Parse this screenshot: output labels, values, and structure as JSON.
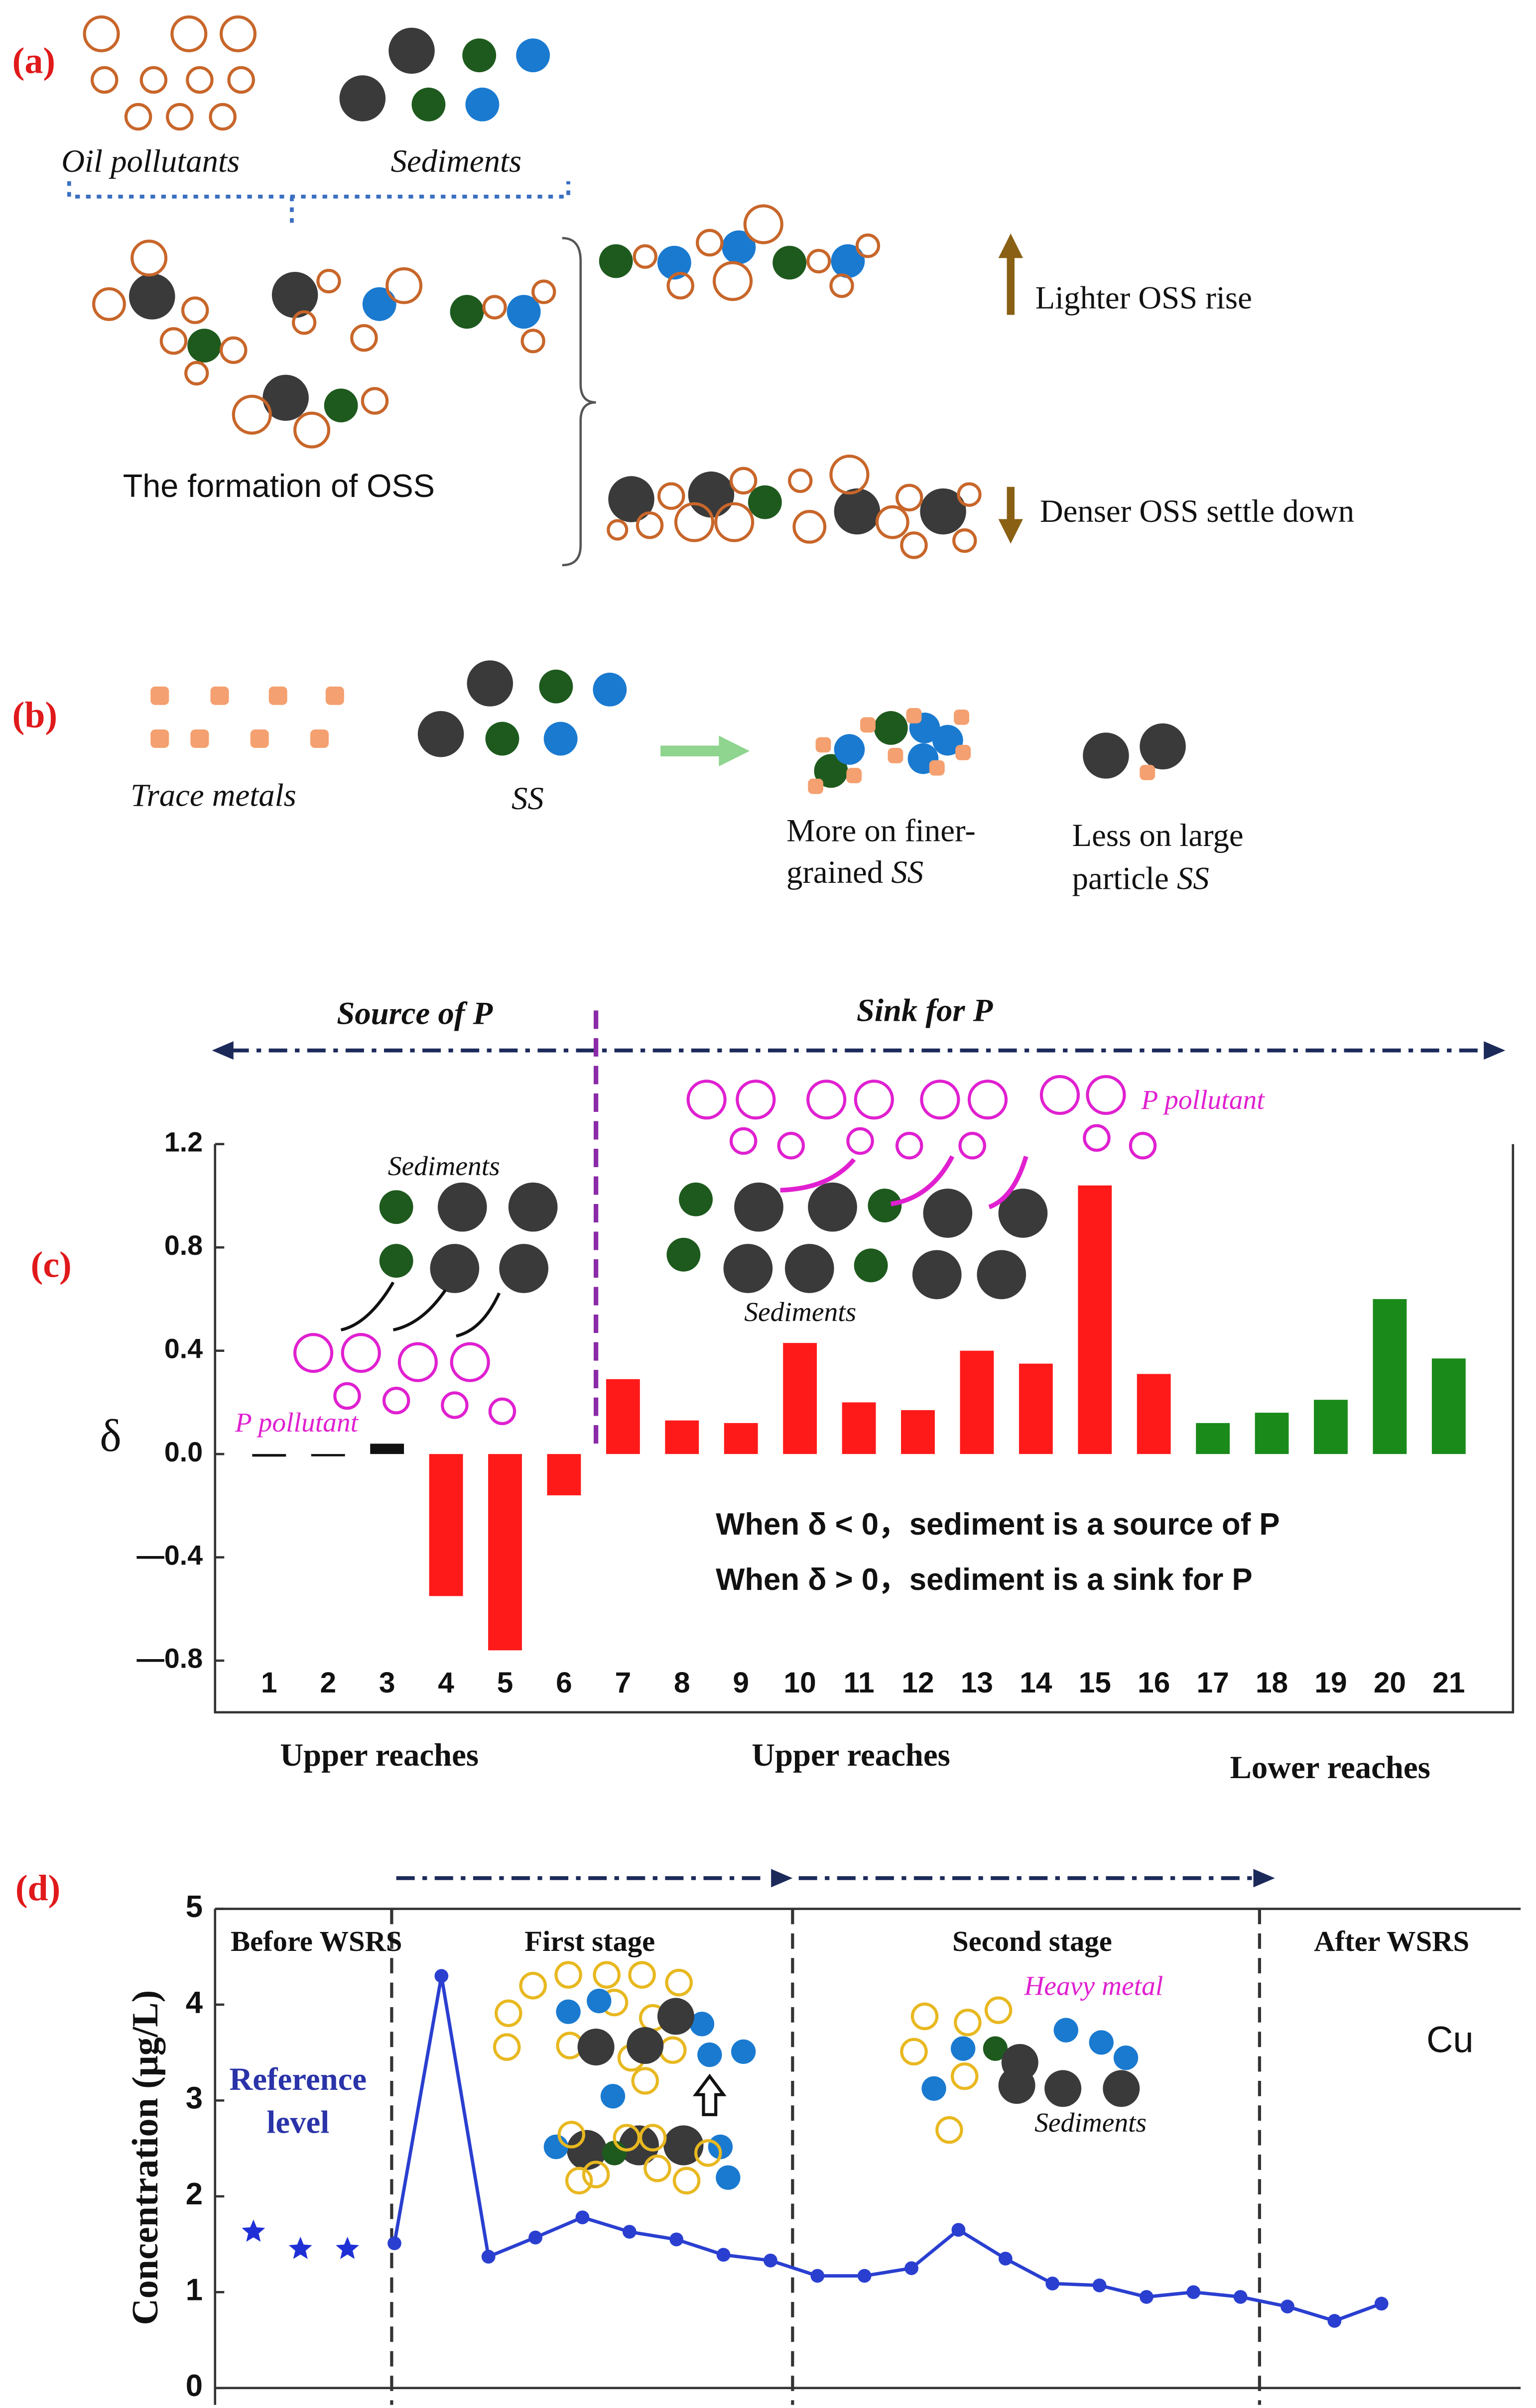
{
  "panels": {
    "a": {
      "label": "(a)",
      "oil": "Oil pollutants",
      "sediments": "Sediments",
      "formation": "The formation of OSS",
      "rise": "Lighter OSS rise",
      "settle": "Denser OSS settle down"
    },
    "b": {
      "label": "(b)",
      "metals": "Trace metals",
      "ss": "SS",
      "finer": [
        "More on finer-",
        "grained",
        "SS"
      ],
      "large": [
        "Less on large",
        "particle",
        "SS"
      ]
    }
  },
  "chart_data": [
    {
      "type": "bar",
      "label": "(c)",
      "ylabel": "δ",
      "categories": [
        "1",
        "2",
        "3",
        "4",
        "5",
        "6",
        "7",
        "8",
        "9",
        "10",
        "11",
        "12",
        "13",
        "14",
        "15",
        "16",
        "17",
        "18",
        "19",
        "20",
        "21"
      ],
      "values": [
        -0.01,
        -0.005,
        0.04,
        -0.55,
        -0.76,
        -0.16,
        0.29,
        0.13,
        0.12,
        0.43,
        0.2,
        0.17,
        0.4,
        0.35,
        1.04,
        0.31,
        0.12,
        0.16,
        0.21,
        0.6,
        0.37
      ],
      "colors": [
        "#111111",
        "#111111",
        "#111111",
        "#ff1a1a",
        "#ff1a1a",
        "#ff1a1a",
        "#ff1a1a",
        "#ff1a1a",
        "#ff1a1a",
        "#ff1a1a",
        "#ff1a1a",
        "#ff1a1a",
        "#ff1a1a",
        "#ff1a1a",
        "#ff1a1a",
        "#ff1a1a",
        "#1a8a1a",
        "#1a8a1a",
        "#1a8a1a",
        "#1a8a1a",
        "#1a8a1a"
      ],
      "ylim": [
        -1.0,
        1.2
      ],
      "yticks": [
        {
          "value": -0.8,
          "label": "—0.8"
        },
        {
          "value": -0.4,
          "label": "—0.4"
        },
        {
          "value": 0,
          "label": "0.0"
        },
        0.4,
        0.8,
        1.2
      ],
      "annotations": {
        "source": "Source of P",
        "sink": "Sink for P",
        "sediments_left": "Sediments",
        "sediments_right": "Sediments",
        "p_left": "P pollutant",
        "p_right": "P pollutant",
        "rule_neg": "When δ < 0，sediment is a source of P",
        "rule_pos": "When δ > 0，sediment is a sink for P"
      },
      "regions": [
        "Upper reaches",
        "Upper reaches",
        "Lower reaches"
      ]
    },
    {
      "type": "line",
      "label": "(d)",
      "ylabel": "Concentration (μg/L)",
      "categories": [
        null,
        null,
        null,
        null,
        null,
        null,
        null,
        null,
        null,
        null,
        null,
        null,
        null,
        null,
        null,
        null,
        null,
        null,
        null,
        null,
        null,
        null,
        null,
        null,
        null
      ],
      "series": [
        {
          "color": "#1f2fd6",
          "marker": "star",
          "line": false,
          "values": [
            1.63,
            1.45,
            1.45,
            null,
            null,
            null,
            null,
            null,
            null,
            null,
            null,
            null,
            null,
            null,
            null,
            null,
            null,
            null,
            null,
            null,
            null,
            null,
            null,
            null,
            null
          ]
        },
        {
          "color": "#2a3fd0",
          "marker": "circle",
          "line": true,
          "values": [
            null,
            null,
            null,
            1.51,
            4.3,
            1.37,
            1.57,
            1.78,
            1.63,
            1.55,
            1.39,
            1.33,
            1.17,
            1.17,
            1.25,
            1.65,
            1.35,
            1.09,
            1.07,
            0.95,
            1.0,
            0.95,
            0.85,
            0.7,
            0.88
          ]
        }
      ],
      "ylim": [
        0,
        5
      ],
      "yticks": [
        0,
        1,
        2,
        3,
        4,
        5
      ],
      "stages": [
        "Before WSRS",
        "First stage",
        "Second stage",
        "After WSRS"
      ],
      "annotations": {
        "heavy_metal": "Heavy metal",
        "sediments": "Sediments",
        "metal": "Cu",
        "reference": [
          "Reference",
          "level"
        ]
      }
    }
  ]
}
